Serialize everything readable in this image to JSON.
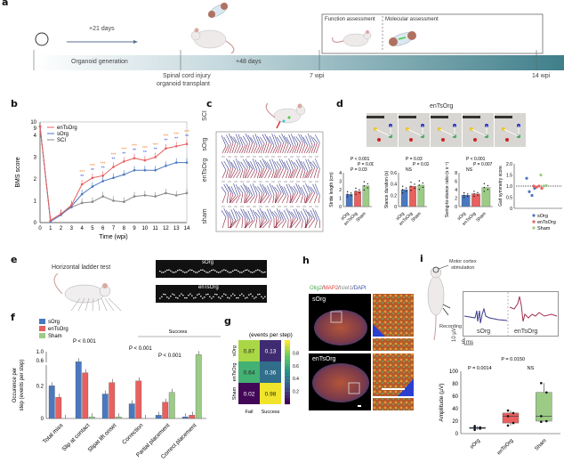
{
  "panels": {
    "a": "a",
    "b": "b",
    "c": "c",
    "d": "d",
    "e": "e",
    "f": "f",
    "g": "g",
    "h": "h",
    "i": "i"
  },
  "panel_a": {
    "arrow_label": "+21 days",
    "timeline_segments": [
      "Organoid generation",
      "+48 days"
    ],
    "timepoints": [
      "Spinal cord injury",
      "organoid transplant",
      "7 wpi",
      "14 wpi"
    ],
    "box_labels": [
      "Function assessment",
      "Molecular assessment"
    ]
  },
  "panel_c": {
    "rows": [
      "SCI",
      "sOrg",
      "enTsOrg",
      "sham"
    ]
  },
  "panel_d": {
    "title": "enTsOrg"
  },
  "panel_e": {
    "title": "Horizontal ladder test",
    "tracks": [
      "sOrg",
      "enTsOrg"
    ]
  },
  "panel_h": {
    "stain": [
      "Olig2",
      "/",
      "MAP2",
      "/",
      "Islet1",
      "/",
      "DAPI"
    ],
    "rows": [
      "sOrg",
      "enTsOrg"
    ]
  },
  "panel_i": {
    "labels": [
      "Motor cortex",
      "stimulation",
      "Recording"
    ],
    "traces": [
      "sOrg",
      "enTsOrg"
    ],
    "scale_y": "10 µV",
    "scale_x": "5 ms"
  },
  "colors": {
    "sOrg": "#4a78c0",
    "enTsOrg": "#e8605f",
    "Sham": "#9ccb86",
    "SCI": "#888888",
    "accent_teal": "#3f7f8a"
  },
  "chart_data": [
    {
      "id": "b",
      "type": "line",
      "title": "",
      "xlabel": "Time (wpi)",
      "ylabel": "BMS score",
      "x": [
        0,
        1,
        2,
        3,
        4,
        5,
        6,
        7,
        8,
        9,
        10,
        11,
        12,
        13,
        14
      ],
      "xlim": [
        0,
        14
      ],
      "ylim": [
        0,
        4
      ],
      "yticks": [
        "0",
        "1",
        "2",
        "3",
        "4",
        "9",
        "10"
      ],
      "series": [
        {
          "name": "enTsOrg",
          "values": [
            9,
            0.1,
            0.4,
            0.8,
            1.75,
            2.05,
            2.15,
            2.55,
            2.8,
            2.95,
            2.85,
            3.0,
            3.4,
            3.5,
            3.6
          ]
        },
        {
          "name": "sOrg",
          "values": [
            9,
            0.05,
            0.35,
            0.75,
            1.3,
            1.65,
            1.9,
            2.05,
            2.2,
            2.4,
            2.4,
            2.4,
            2.6,
            2.75,
            2.75
          ]
        },
        {
          "name": "SCI",
          "values": [
            9,
            0.1,
            0.4,
            0.7,
            0.9,
            0.95,
            1.2,
            1.0,
            0.95,
            1.2,
            1.25,
            1.2,
            1.35,
            1.25,
            1.35
          ]
        }
      ],
      "legend": [
        "enTsOrg",
        "sOrg",
        "SCI"
      ],
      "legend_position": "top-left",
      "significance": [
        "***",
        "***",
        "***",
        "***",
        "***",
        "***",
        "***",
        "***",
        "***",
        "***",
        "***"
      ]
    },
    {
      "id": "d1",
      "type": "bar",
      "categories": [
        "sOrg",
        "enTsOrg",
        "Sham"
      ],
      "values": [
        1.45,
        1.8,
        2.45
      ],
      "ylabel": "Stride length (cm)",
      "ylim": [
        0,
        4
      ],
      "yticks": [
        "0",
        "1",
        "2",
        "3",
        "4"
      ],
      "annotations": [
        "P < 0.001",
        "P = 0.0055",
        "P = 0.03"
      ]
    },
    {
      "id": "d2",
      "type": "bar",
      "categories": [
        "sOrg",
        "enTsOrg",
        "Sham"
      ],
      "values": [
        0.3,
        0.36,
        0.38
      ],
      "ylabel": "Stance duration (s)",
      "ylim": [
        0,
        0.6
      ],
      "yticks": [
        "0",
        "0.2",
        "0.4",
        "0.6"
      ],
      "annotations": [
        "P = 0.03",
        "P = 0.02",
        "NS"
      ]
    },
    {
      "id": "d3",
      "type": "bar",
      "categories": [
        "sOrg",
        "enTsOrg",
        "Sham"
      ],
      "values": [
        2.7,
        3.0,
        4.5
      ],
      "ylabel": "Swing-to-stance ratio (s s⁻¹)",
      "ylim": [
        0,
        8
      ],
      "yticks": [
        "0",
        "2",
        "4",
        "6",
        "8"
      ],
      "annotations": [
        "P < 0.001",
        "P = 0.007",
        "NS"
      ]
    },
    {
      "id": "d4",
      "type": "scatter",
      "ylabel": "Gait symmetry score",
      "ylim": [
        0,
        2
      ],
      "yticks": [
        "0",
        "0.5",
        "1.0",
        "1.5",
        "2.0"
      ],
      "series": [
        {
          "name": "sOrg",
          "values": [
            1.35,
            0.75,
            0.58,
            0.9
          ]
        },
        {
          "name": "enTsOrg",
          "values": [
            1.0,
            0.95,
            1.0,
            0.9
          ]
        },
        {
          "name": "Sham",
          "values": [
            1.5,
            1.0,
            1.02
          ]
        }
      ],
      "legend": [
        "sOrg",
        "enTsOrg",
        "Sham"
      ],
      "legend_position": "bottom"
    },
    {
      "id": "f",
      "type": "bar",
      "ylabel": "Occurence per step (events per step)",
      "categories": [
        "Total miss",
        "Slip at contact",
        "Slipat lift onset",
        "Correction",
        "Partial placement",
        "Correct placement"
      ],
      "yticks": [
        "0",
        "0.2",
        "0.6",
        "1.0"
      ],
      "series": [
        {
          "name": "sOrg",
          "values": [
            0.2,
            0.55,
            0.15,
            0.09,
            0.02,
            0.01
          ]
        },
        {
          "name": "enTsOrg",
          "values": [
            0.13,
            0.28,
            0.22,
            0.23,
            0.1,
            0.02
          ]
        },
        {
          "name": "Sham",
          "values": [
            0.0,
            0.01,
            0.01,
            0.0,
            0.16,
            0.87
          ]
        }
      ],
      "legend": [
        "sOrg",
        "enTsOrg",
        "Sham"
      ],
      "legend_position": "top-left",
      "annotations": [
        "P < 0.001",
        "P < 0.001",
        "P < 0.001",
        "Success"
      ]
    },
    {
      "id": "g",
      "type": "heatmap",
      "title": "(events per step)",
      "rows": [
        "sOrg",
        "enTsOrg",
        "Sham"
      ],
      "cols": [
        "Fail",
        "Success"
      ],
      "values": [
        [
          0.87,
          0.13
        ],
        [
          0.64,
          0.36
        ],
        [
          0.02,
          0.98
        ]
      ],
      "colorbar_ticks": [
        "0.2",
        "0.4",
        "0.6",
        "0.8"
      ]
    },
    {
      "id": "i",
      "type": "bar",
      "subtype": "box",
      "categories": [
        "sOrg",
        "enTsOrg",
        "Sham"
      ],
      "ylabel": "Amplitude (µV)",
      "ylim": [
        0,
        100
      ],
      "yticks": [
        "0",
        "20",
        "40",
        "60",
        "80",
        "100"
      ],
      "boxes": [
        {
          "name": "sOrg",
          "min": 6,
          "q1": 8,
          "median": 9,
          "q3": 10,
          "max": 12
        },
        {
          "name": "enTsOrg",
          "min": 13,
          "q1": 17,
          "median": 28,
          "q3": 33,
          "max": 37
        },
        {
          "name": "Sham",
          "min": 19,
          "q1": 20,
          "median": 28,
          "q3": 66,
          "max": 81
        }
      ],
      "annotations": [
        "P = 0.0150",
        "P = 0.0014",
        "NS"
      ]
    }
  ]
}
